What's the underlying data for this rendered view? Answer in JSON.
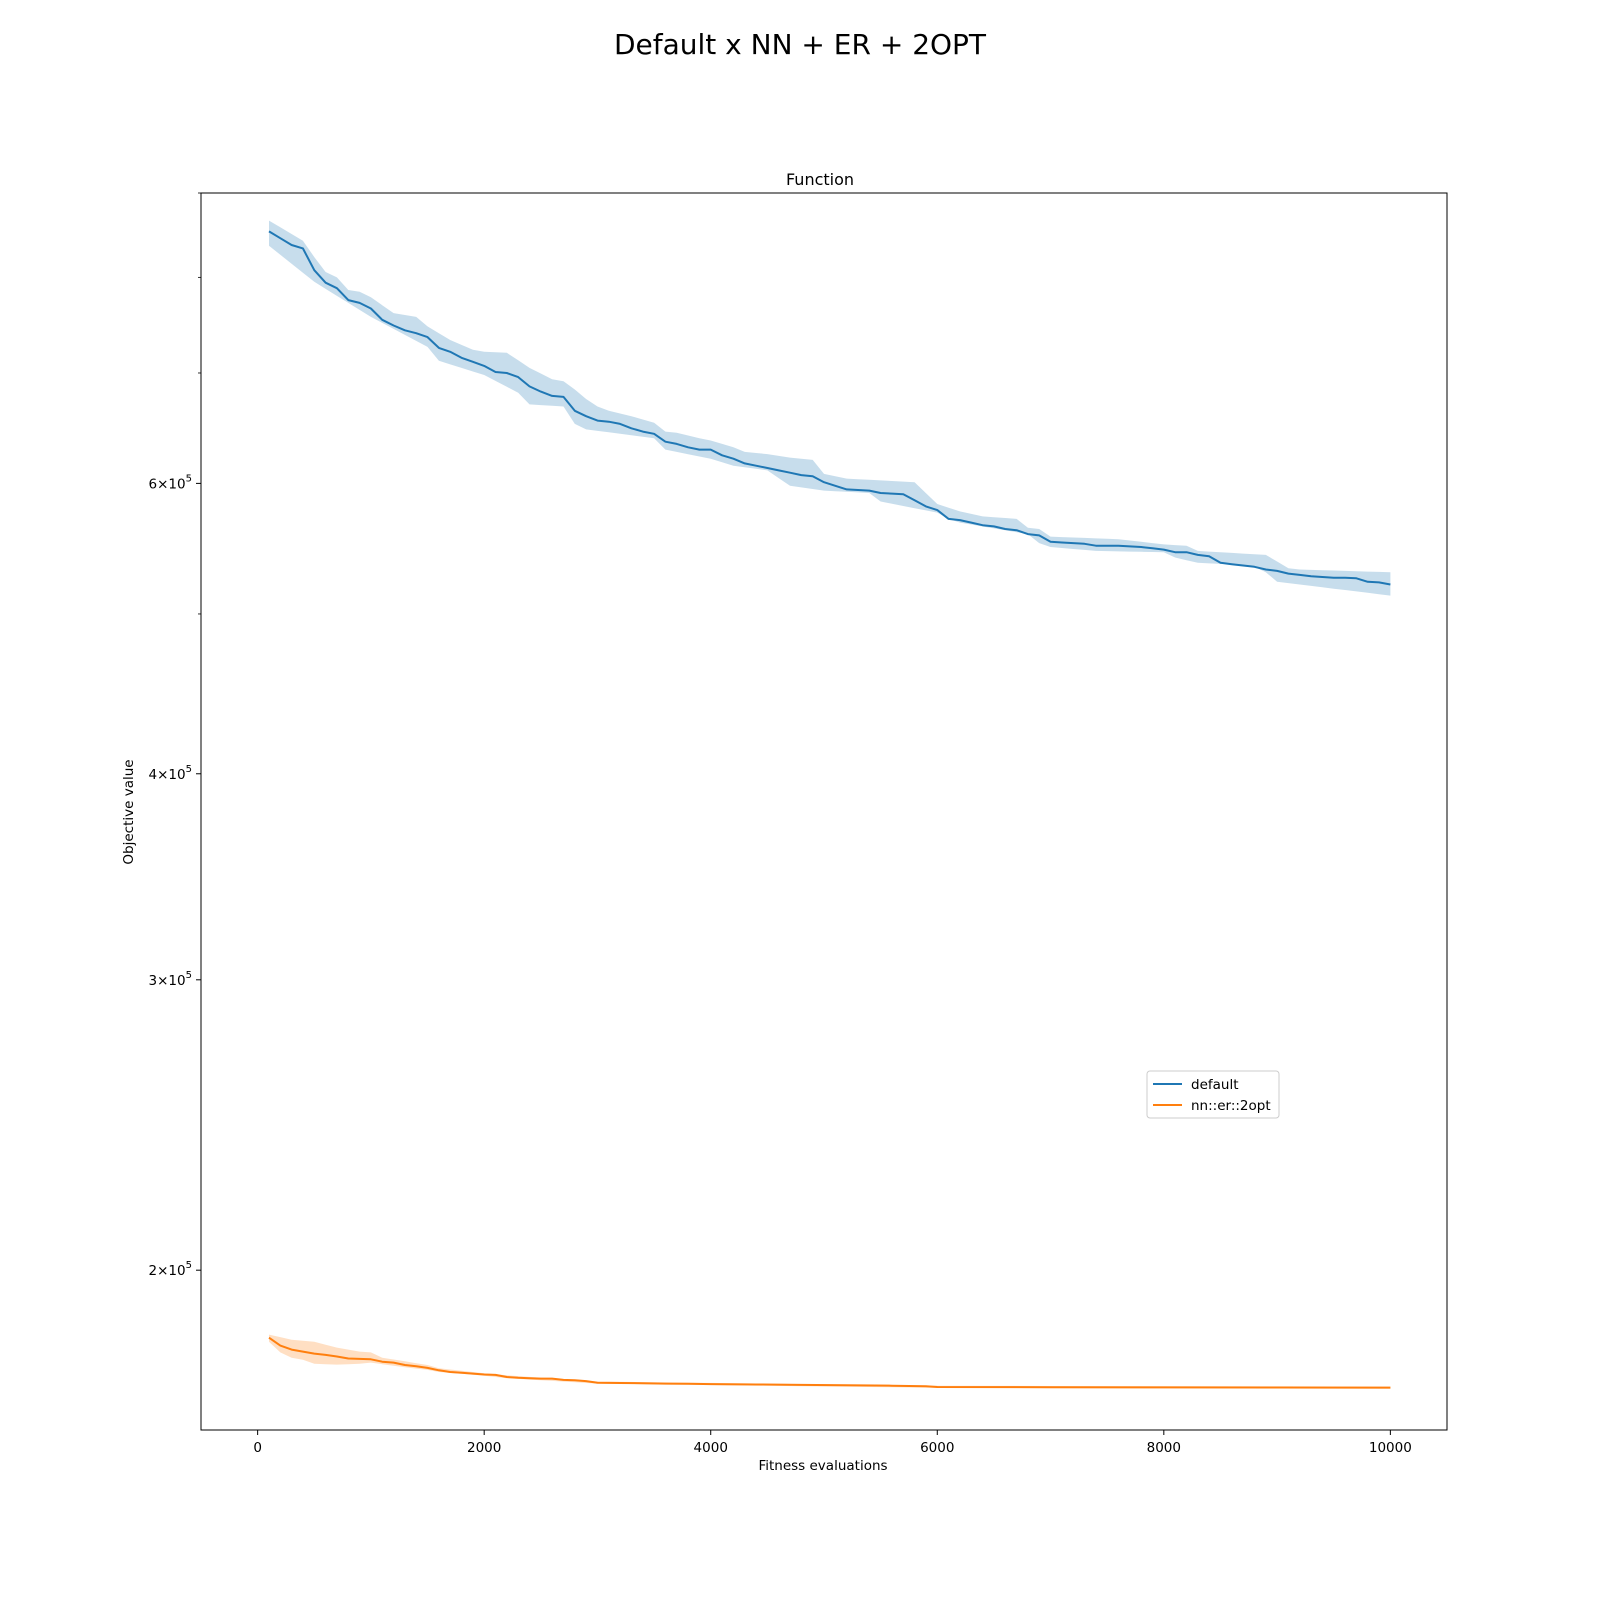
{
  "figure": {
    "suptitle": "Default x NN + ER + 2OPT"
  },
  "chart_data": {
    "type": "line",
    "title": "Function",
    "xlabel": "Fitness evaluations",
    "ylabel": "Objective value",
    "y_scale": "log",
    "xlim": [
      -500,
      10500
    ],
    "ylim": [
      160000,
      900000
    ],
    "x_ticks": [
      {
        "value": 0,
        "label": "0"
      },
      {
        "value": 2000,
        "label": "2000"
      },
      {
        "value": 4000,
        "label": "4000"
      },
      {
        "value": 6000,
        "label": "6000"
      },
      {
        "value": 8000,
        "label": "8000"
      },
      {
        "value": 10000,
        "label": "10000"
      }
    ],
    "y_ticks": [
      {
        "value": 200000,
        "mantissa": "2",
        "base": "10",
        "exp": "5"
      },
      {
        "value": 300000,
        "mantissa": "3",
        "base": "10",
        "exp": "5"
      },
      {
        "value": 400000,
        "mantissa": "4",
        "base": "10",
        "exp": "5"
      },
      {
        "value": 600000,
        "mantissa": "6",
        "base": "10",
        "exp": "5"
      }
    ],
    "y_minor_ticks": [
      500000,
      700000,
      800000,
      900000
    ],
    "grid": false,
    "legend": {
      "placement": "lower-right"
    },
    "series": [
      {
        "name": "default",
        "color": "#1f77b4",
        "band_color": "#1f77b4",
        "points": [
          [
            100,
            853000
          ],
          [
            200,
            845000
          ],
          [
            300,
            837000
          ],
          [
            400,
            833000
          ],
          [
            500,
            808000
          ],
          [
            600,
            794000
          ],
          [
            700,
            788000
          ],
          [
            800,
            775000
          ],
          [
            900,
            772000
          ],
          [
            1000,
            766000
          ],
          [
            1100,
            754000
          ],
          [
            1200,
            748000
          ],
          [
            1300,
            743000
          ],
          [
            1400,
            740000
          ],
          [
            1500,
            736000
          ],
          [
            1600,
            725000
          ],
          [
            1700,
            721000
          ],
          [
            1800,
            715000
          ],
          [
            1900,
            711000
          ],
          [
            2000,
            707000
          ],
          [
            2100,
            701000
          ],
          [
            2200,
            700000
          ],
          [
            2300,
            696000
          ],
          [
            2400,
            687000
          ],
          [
            2500,
            682000
          ],
          [
            2600,
            678000
          ],
          [
            2700,
            677000
          ],
          [
            2800,
            664000
          ],
          [
            2900,
            659000
          ],
          [
            3000,
            655000
          ],
          [
            3100,
            654000
          ],
          [
            3200,
            652000
          ],
          [
            3300,
            648000
          ],
          [
            3400,
            645000
          ],
          [
            3500,
            643000
          ],
          [
            3600,
            636000
          ],
          [
            3700,
            634000
          ],
          [
            3800,
            631000
          ],
          [
            3900,
            629000
          ],
          [
            4000,
            629000
          ],
          [
            4100,
            624000
          ],
          [
            4200,
            621000
          ],
          [
            4300,
            617000
          ],
          [
            4400,
            615000
          ],
          [
            4500,
            613000
          ],
          [
            4600,
            611000
          ],
          [
            4700,
            609000
          ],
          [
            4800,
            607000
          ],
          [
            4900,
            606000
          ],
          [
            5000,
            601000
          ],
          [
            5100,
            598000
          ],
          [
            5200,
            595000
          ],
          [
            5300,
            594500
          ],
          [
            5400,
            594000
          ],
          [
            5500,
            592000
          ],
          [
            5600,
            591500
          ],
          [
            5700,
            591000
          ],
          [
            5800,
            586000
          ],
          [
            5900,
            581000
          ],
          [
            6000,
            578000
          ],
          [
            6100,
            571000
          ],
          [
            6200,
            570000
          ],
          [
            6300,
            568000
          ],
          [
            6400,
            566000
          ],
          [
            6500,
            565000
          ],
          [
            6600,
            563000
          ],
          [
            6700,
            562000
          ],
          [
            6800,
            559000
          ],
          [
            6900,
            558000
          ],
          [
            7000,
            553000
          ],
          [
            7100,
            552500
          ],
          [
            7200,
            552000
          ],
          [
            7300,
            551500
          ],
          [
            7400,
            550000
          ],
          [
            7500,
            550000
          ],
          [
            7600,
            550000
          ],
          [
            7700,
            549500
          ],
          [
            7800,
            549000
          ],
          [
            7900,
            548000
          ],
          [
            8000,
            547000
          ],
          [
            8100,
            545000
          ],
          [
            8200,
            545000
          ],
          [
            8300,
            543000
          ],
          [
            8400,
            542000
          ],
          [
            8500,
            537000
          ],
          [
            8600,
            536000
          ],
          [
            8700,
            535000
          ],
          [
            8800,
            534000
          ],
          [
            8900,
            532000
          ],
          [
            9000,
            531000
          ],
          [
            9100,
            529000
          ],
          [
            9200,
            528000
          ],
          [
            9300,
            527000
          ],
          [
            9400,
            526500
          ],
          [
            9500,
            526000
          ],
          [
            9600,
            526000
          ],
          [
            9700,
            525500
          ],
          [
            9800,
            523000
          ],
          [
            9900,
            522500
          ],
          [
            10000,
            521000
          ]
        ],
        "band_lower": [
          [
            100,
            836000
          ],
          [
            500,
            795000
          ],
          [
            1000,
            757000
          ],
          [
            1500,
            726000
          ],
          [
            1600,
            712000
          ],
          [
            2000,
            698000
          ],
          [
            2300,
            681000
          ],
          [
            2400,
            670000
          ],
          [
            2700,
            668000
          ],
          [
            2800,
            652000
          ],
          [
            2900,
            647000
          ],
          [
            3500,
            639000
          ],
          [
            3600,
            629000
          ],
          [
            4000,
            621000
          ],
          [
            4200,
            615000
          ],
          [
            4500,
            611000
          ],
          [
            4700,
            598000
          ],
          [
            5000,
            594000
          ],
          [
            5400,
            592000
          ],
          [
            5500,
            585000
          ],
          [
            6000,
            576000
          ],
          [
            6200,
            568000
          ],
          [
            6800,
            559000
          ],
          [
            6900,
            552000
          ],
          [
            7000,
            549000
          ],
          [
            7400,
            546000
          ],
          [
            8000,
            545000
          ],
          [
            8100,
            541000
          ],
          [
            8300,
            537000
          ],
          [
            8800,
            535000
          ],
          [
            8900,
            530000
          ],
          [
            9000,
            523000
          ],
          [
            10000,
            513000
          ]
        ],
        "band_upper": [
          [
            100,
            866000
          ],
          [
            400,
            842000
          ],
          [
            500,
            823000
          ],
          [
            600,
            806000
          ],
          [
            700,
            800000
          ],
          [
            800,
            786000
          ],
          [
            900,
            784000
          ],
          [
            1000,
            778000
          ],
          [
            1200,
            761000
          ],
          [
            1400,
            757000
          ],
          [
            1500,
            747000
          ],
          [
            1600,
            740000
          ],
          [
            1700,
            733000
          ],
          [
            1900,
            723000
          ],
          [
            2000,
            721000
          ],
          [
            2200,
            720000
          ],
          [
            2400,
            705000
          ],
          [
            2600,
            694000
          ],
          [
            2700,
            692000
          ],
          [
            2800,
            684000
          ],
          [
            2900,
            675000
          ],
          [
            3000,
            668000
          ],
          [
            3100,
            664000
          ],
          [
            3300,
            659000
          ],
          [
            3500,
            653000
          ],
          [
            3600,
            645000
          ],
          [
            3700,
            644000
          ],
          [
            3900,
            639000
          ],
          [
            4000,
            637000
          ],
          [
            4200,
            631000
          ],
          [
            4300,
            627000
          ],
          [
            4500,
            625000
          ],
          [
            4700,
            622000
          ],
          [
            4900,
            620000
          ],
          [
            5000,
            608000
          ],
          [
            5200,
            604000
          ],
          [
            5800,
            601000
          ],
          [
            6000,
            583000
          ],
          [
            6200,
            577000
          ],
          [
            6400,
            573000
          ],
          [
            6700,
            571000
          ],
          [
            6800,
            564000
          ],
          [
            6900,
            563000
          ],
          [
            7000,
            557000
          ],
          [
            7300,
            556000
          ],
          [
            7600,
            555000
          ],
          [
            8000,
            551000
          ],
          [
            8200,
            550000
          ],
          [
            8300,
            546000
          ],
          [
            8500,
            545000
          ],
          [
            8900,
            543000
          ],
          [
            9000,
            538000
          ],
          [
            9100,
            533000
          ],
          [
            9200,
            532000
          ],
          [
            10000,
            530000
          ]
        ]
      },
      {
        "name": "nn::er::2opt",
        "color": "#ff7f0e",
        "band_color": "#ff7f0e",
        "points": [
          [
            100,
            182000
          ],
          [
            200,
            180000
          ],
          [
            300,
            179000
          ],
          [
            400,
            178500
          ],
          [
            500,
            178000
          ],
          [
            600,
            177700
          ],
          [
            700,
            177300
          ],
          [
            800,
            176800
          ],
          [
            900,
            176700
          ],
          [
            1000,
            176600
          ],
          [
            1100,
            176000
          ],
          [
            1200,
            175800
          ],
          [
            1300,
            175200
          ],
          [
            1400,
            174900
          ],
          [
            1500,
            174500
          ],
          [
            1600,
            173900
          ],
          [
            1700,
            173500
          ],
          [
            1800,
            173300
          ],
          [
            1900,
            173100
          ],
          [
            2000,
            172900
          ],
          [
            2100,
            172800
          ],
          [
            2200,
            172300
          ],
          [
            2300,
            172100
          ],
          [
            2400,
            172000
          ],
          [
            2500,
            171900
          ],
          [
            2600,
            171900
          ],
          [
            2700,
            171600
          ],
          [
            2800,
            171500
          ],
          [
            2900,
            171300
          ],
          [
            3000,
            170900
          ],
          [
            3200,
            170850
          ],
          [
            3400,
            170800
          ],
          [
            3600,
            170700
          ],
          [
            3800,
            170650
          ],
          [
            4000,
            170600
          ],
          [
            4400,
            170500
          ],
          [
            4800,
            170400
          ],
          [
            5200,
            170300
          ],
          [
            5600,
            170200
          ],
          [
            5900,
            170100
          ],
          [
            6000,
            169900
          ],
          [
            7000,
            169850
          ],
          [
            8000,
            169800
          ],
          [
            9000,
            169780
          ],
          [
            10000,
            169750
          ]
        ],
        "band_lower": [
          [
            100,
            181000
          ],
          [
            200,
            178300
          ],
          [
            300,
            177000
          ],
          [
            400,
            176500
          ],
          [
            500,
            175500
          ],
          [
            700,
            175300
          ],
          [
            900,
            175500
          ],
          [
            1000,
            175800
          ],
          [
            1200,
            175000
          ],
          [
            1500,
            174000
          ],
          [
            1600,
            173500
          ],
          [
            2000,
            172600
          ],
          [
            2200,
            172000
          ],
          [
            3000,
            170700
          ],
          [
            6000,
            169700
          ],
          [
            10000,
            169500
          ]
        ],
        "band_upper": [
          [
            100,
            182800
          ],
          [
            300,
            181500
          ],
          [
            500,
            181000
          ],
          [
            700,
            179500
          ],
          [
            900,
            178500
          ],
          [
            1000,
            178300
          ],
          [
            1100,
            177000
          ],
          [
            1500,
            175200
          ],
          [
            1600,
            174400
          ],
          [
            2000,
            173200
          ],
          [
            2200,
            172700
          ],
          [
            3000,
            171200
          ],
          [
            6000,
            170200
          ],
          [
            10000,
            170000
          ]
        ]
      }
    ]
  }
}
